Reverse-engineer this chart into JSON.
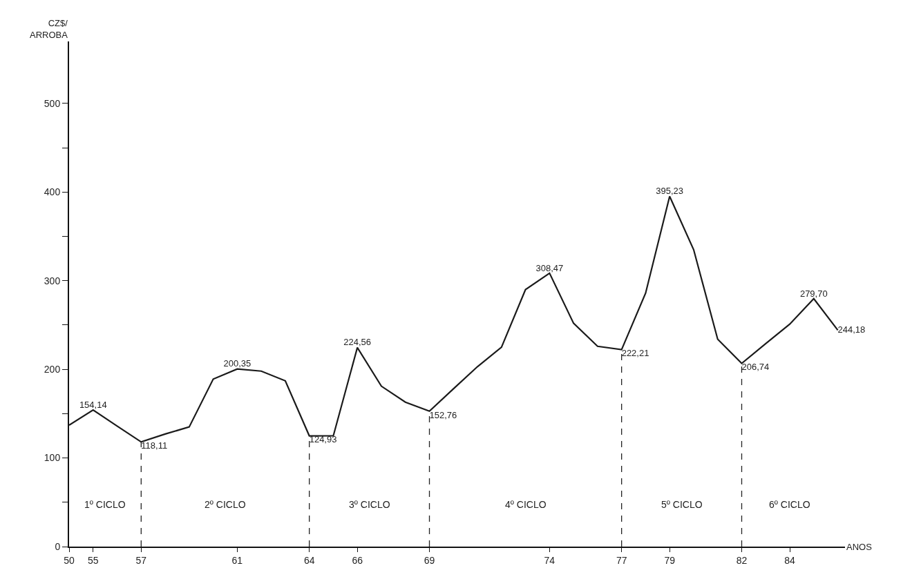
{
  "chart_data": {
    "type": "line",
    "xlabel": "ANOS",
    "ylabel": "CZ$/ ARROBA",
    "categories": [
      "50",
      "55",
      null,
      "57",
      null,
      null,
      null,
      "61",
      null,
      null,
      "64",
      null,
      "66",
      null,
      null,
      "69",
      null,
      null,
      null,
      null,
      "74",
      null,
      null,
      "77",
      null,
      "79",
      null,
      null,
      "82",
      null,
      "84",
      null,
      null
    ],
    "values": [
      137,
      154.14,
      136,
      118.11,
      127,
      135,
      189,
      200.35,
      198,
      187,
      124.93,
      125,
      224.56,
      181,
      163,
      152.76,
      178,
      203,
      225,
      290,
      308.47,
      252,
      226,
      222.21,
      286,
      395.23,
      335,
      234,
      206.74,
      229,
      251,
      279.7,
      244.18
    ],
    "value_labels": [
      null,
      "154,14",
      null,
      "118,11",
      null,
      null,
      null,
      "200,35",
      null,
      null,
      "124,93",
      null,
      "224,56",
      null,
      null,
      "152,76",
      null,
      null,
      null,
      null,
      "308,47",
      null,
      null,
      "222,21",
      null,
      "395,23",
      null,
      null,
      "206,74",
      null,
      null,
      "279,70",
      "244,18"
    ],
    "color": "#1a1a1a",
    "marker": "none",
    "line_style": "solid",
    "legend": false,
    "ylim": [
      0,
      570
    ],
    "yticks": [
      0,
      {
        "value": 50,
        "label": null
      },
      100,
      {
        "value": 150,
        "label": null
      },
      200,
      {
        "value": 250,
        "label": null
      },
      300,
      {
        "value": 350,
        "label": null
      },
      400,
      {
        "value": 450,
        "label": null
      },
      500
    ],
    "ref_lines": [
      {
        "axis": "x",
        "value": "57",
        "line_style": "dashed"
      },
      {
        "axis": "x",
        "value": "64",
        "line_style": "dashed"
      },
      {
        "axis": "x",
        "value": "69",
        "line_style": "dashed"
      },
      {
        "axis": "x",
        "value": "77",
        "line_style": "dashed"
      },
      {
        "axis": "x",
        "value": "82",
        "line_style": "dashed"
      }
    ],
    "annotations": [
      "1º CICLO",
      "2º CICLO",
      "3º CICLO",
      "4º CICLO",
      "5º CICLO",
      "6º CICLO"
    ]
  }
}
